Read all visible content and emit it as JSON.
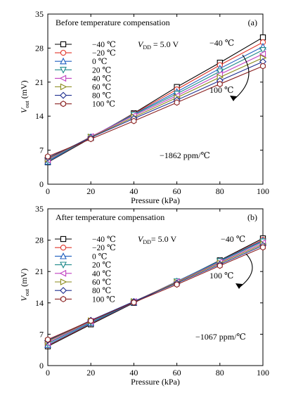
{
  "chart_data": [
    {
      "type": "line",
      "panel_label": "(a)",
      "title": "Before temperature compensation",
      "xlabel": "Pressure (kPa)",
      "ylabel_main": "V",
      "ylabel_sub": "out",
      "ylabel_unit": " (mV)",
      "vdd_main": "V",
      "vdd_sub": "DD",
      "vdd_value": " = 5.0 V",
      "arrow_top_label": "−40 ℃",
      "arrow_bottom_label": "100 ℃",
      "tc_annotation": "−1862 ppm/℃",
      "xlim": [
        0,
        100
      ],
      "ylim": [
        0,
        35
      ],
      "x_ticks": [
        0,
        20,
        40,
        60,
        80,
        100
      ],
      "y_ticks": [
        0,
        7,
        14,
        21,
        28,
        35
      ],
      "x": [
        0,
        20,
        40,
        60,
        80,
        100
      ],
      "series": [
        {
          "name": "−40 ℃",
          "marker": "square",
          "color": "#000000",
          "values": [
            4.5,
            9.5,
            14.6,
            20.0,
            25.0,
            30.2
          ]
        },
        {
          "name": "−20 ℃",
          "marker": "circle",
          "color": "#e0362b",
          "values": [
            4.6,
            9.6,
            14.5,
            19.5,
            24.5,
            29.2
          ]
        },
        {
          "name": "0 ℃",
          "marker": "triangle-up",
          "color": "#1f5fbf",
          "values": [
            4.6,
            9.7,
            14.4,
            19.0,
            23.8,
            28.3
          ]
        },
        {
          "name": "20 ℃",
          "marker": "triangle-down",
          "color": "#1f8a8a",
          "values": [
            4.8,
            9.7,
            14.3,
            18.6,
            23.2,
            27.6
          ]
        },
        {
          "name": "40 ℃",
          "marker": "triangle-left",
          "color": "#c040c0",
          "values": [
            5.0,
            9.8,
            14.1,
            18.2,
            22.6,
            26.8
          ]
        },
        {
          "name": "60 ℃",
          "marker": "triangle-right",
          "color": "#8a8a1a",
          "values": [
            5.2,
            9.7,
            13.8,
            17.8,
            22.0,
            26.0
          ]
        },
        {
          "name": "80 ℃",
          "marker": "diamond",
          "color": "#1f2f8f",
          "values": [
            5.4,
            9.6,
            13.5,
            17.3,
            21.3,
            25.2
          ]
        },
        {
          "name": "100 ℃",
          "marker": "hexagon",
          "color": "#8a2020",
          "values": [
            5.7,
            9.3,
            13.0,
            16.8,
            20.6,
            24.3
          ]
        }
      ]
    },
    {
      "type": "line",
      "panel_label": "(b)",
      "title": "After temperature compensation",
      "xlabel": "Pressure (kPa)",
      "ylabel_main": "V",
      "ylabel_sub": "out",
      "ylabel_unit": " (mV)",
      "vdd_main": "V",
      "vdd_sub": "DD",
      "vdd_value": "= 5.0 V",
      "arrow_top_label": "−40 ℃",
      "arrow_bottom_label": "100 ℃",
      "tc_annotation": "−1067 ppm/℃",
      "xlim": [
        0,
        100
      ],
      "ylim": [
        0,
        35
      ],
      "x_ticks": [
        0,
        20,
        40,
        60,
        80,
        100
      ],
      "y_ticks": [
        0,
        7,
        14,
        21,
        28,
        35
      ],
      "x": [
        0,
        20,
        40,
        60,
        80,
        100
      ],
      "series": [
        {
          "name": "−40 ℃",
          "marker": "square",
          "color": "#000000",
          "values": [
            4.3,
            9.2,
            14.0,
            18.7,
            23.5,
            28.4
          ]
        },
        {
          "name": "−20 ℃",
          "marker": "circle",
          "color": "#e0362b",
          "values": [
            4.5,
            9.4,
            14.1,
            18.7,
            23.4,
            28.1
          ]
        },
        {
          "name": "0 ℃",
          "marker": "triangle-up",
          "color": "#1f5fbf",
          "values": [
            4.6,
            9.5,
            14.1,
            18.8,
            23.4,
            27.9
          ]
        },
        {
          "name": "20 ℃",
          "marker": "triangle-down",
          "color": "#1f8a8a",
          "values": [
            4.9,
            9.7,
            14.2,
            18.8,
            23.3,
            27.7
          ]
        },
        {
          "name": "40 ℃",
          "marker": "triangle-left",
          "color": "#c040c0",
          "values": [
            5.1,
            9.9,
            14.3,
            18.7,
            23.1,
            27.4
          ]
        },
        {
          "name": "60 ℃",
          "marker": "triangle-right",
          "color": "#8a8a1a",
          "values": [
            5.4,
            10.0,
            14.3,
            18.6,
            22.9,
            27.1
          ]
        },
        {
          "name": "80 ℃",
          "marker": "diamond",
          "color": "#1f2f8f",
          "values": [
            5.6,
            10.1,
            14.3,
            18.4,
            22.6,
            26.8
          ]
        },
        {
          "name": "100 ℃",
          "marker": "hexagon",
          "color": "#8a2020",
          "values": [
            5.8,
            10.0,
            14.1,
            18.1,
            22.3,
            26.4
          ]
        }
      ]
    }
  ]
}
